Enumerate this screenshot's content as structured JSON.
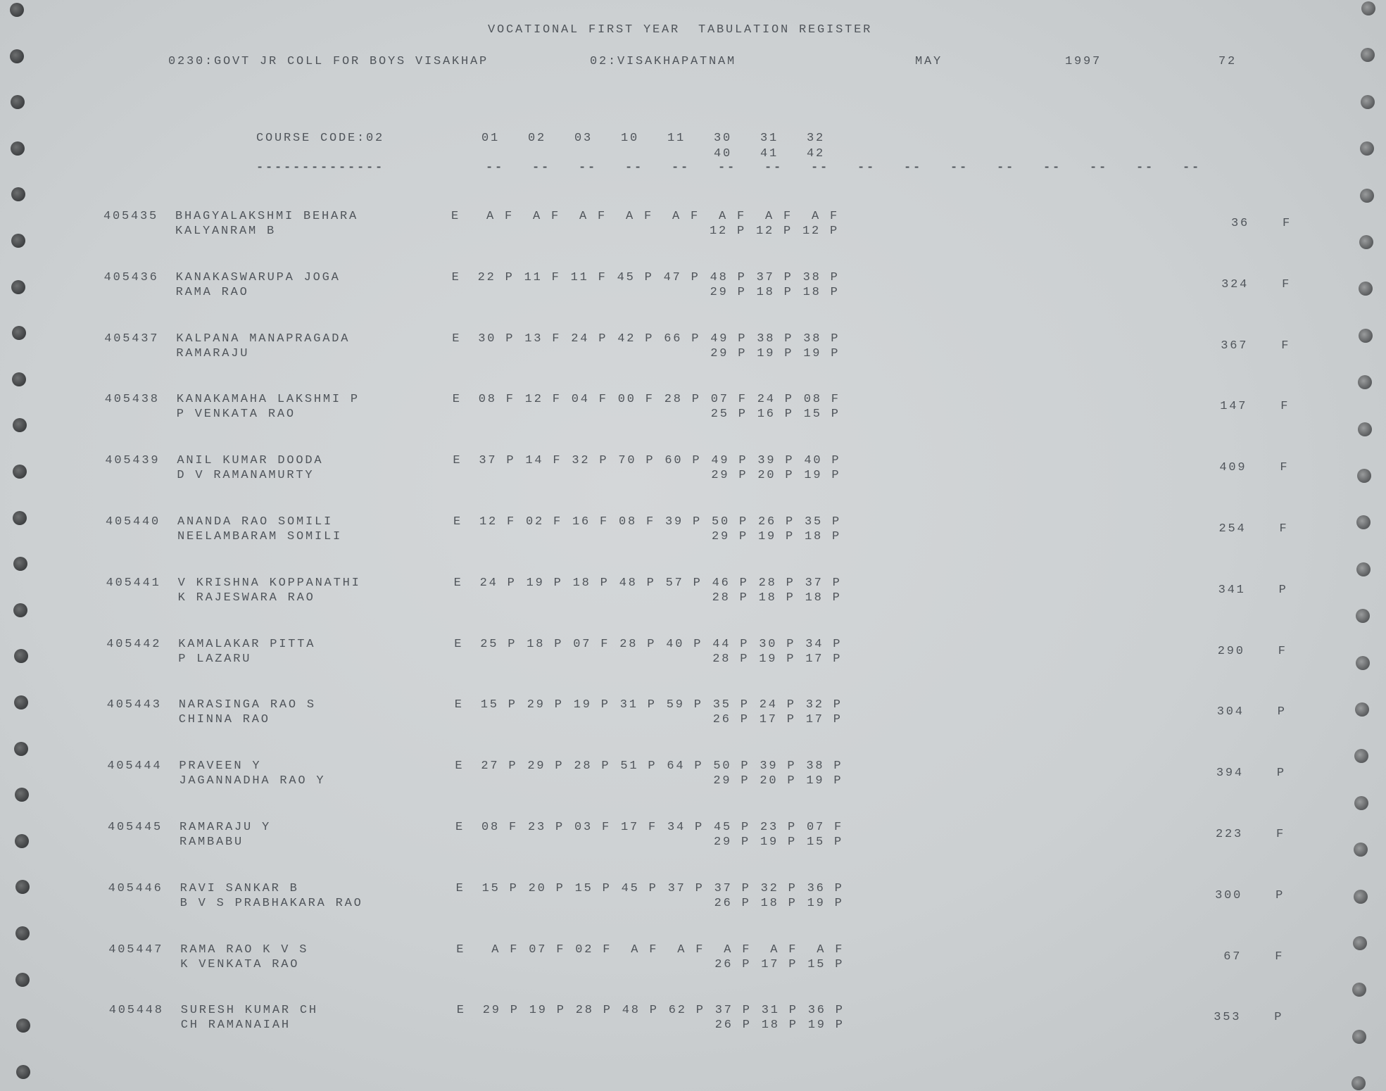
{
  "header": {
    "title": "VOCATIONAL FIRST YEAR  TABULATION REGISTER",
    "college": "0230:GOVT JR COLL FOR BOYS VISAKHAP",
    "district": "02:VISAKHAPATNAM",
    "month": "MAY",
    "year": "1997",
    "page": "72"
  },
  "columns": {
    "course_code": "COURSE CODE:02",
    "course_underline": "--------------",
    "subjects_top": [
      "01",
      "02",
      "03",
      "10",
      "11",
      "30",
      "31",
      "32"
    ],
    "subjects_bottom": [
      "40",
      "41",
      "42"
    ],
    "dash": "--"
  },
  "students": [
    {
      "id": "405435",
      "name": "BHAGYALAKSHMI BEHARA",
      "parent": "KALYANRAM B",
      "med": "E",
      "marks": [
        " A F",
        " A F",
        " A F",
        " A F",
        " A F",
        " A F",
        " A F",
        " A F"
      ],
      "practicals": [
        "12 P",
        "12 P",
        "12 P"
      ],
      "total": "36",
      "result": "F"
    },
    {
      "id": "405436",
      "name": "KANAKASWARUPA JOGA",
      "parent": "RAMA RAO",
      "med": "E",
      "marks": [
        "22 P",
        "11 F",
        "11 F",
        "45 P",
        "47 P",
        "48 P",
        "37 P",
        "38 P"
      ],
      "practicals": [
        "29 P",
        "18 P",
        "18 P"
      ],
      "total": "324",
      "result": "F"
    },
    {
      "id": "405437",
      "name": "KALPANA MANAPRAGADA",
      "parent": "RAMARAJU",
      "med": "E",
      "marks": [
        "30 P",
        "13 F",
        "24 P",
        "42 P",
        "66 P",
        "49 P",
        "38 P",
        "38 P"
      ],
      "practicals": [
        "29 P",
        "19 P",
        "19 P"
      ],
      "total": "367",
      "result": "F"
    },
    {
      "id": "405438",
      "name": "KANAKAMAHA LAKSHMI P",
      "parent": "P VENKATA RAO",
      "med": "E",
      "marks": [
        "08 F",
        "12 F",
        "04 F",
        "00 F",
        "28 P",
        "07 F",
        "24 P",
        "08 F"
      ],
      "practicals": [
        "25 P",
        "16 P",
        "15 P"
      ],
      "total": "147",
      "result": "F"
    },
    {
      "id": "405439",
      "name": "ANIL KUMAR DOODA",
      "parent": "D V RAMANAMURTY",
      "med": "E",
      "marks": [
        "37 P",
        "14 F",
        "32 P",
        "70 P",
        "60 P",
        "49 P",
        "39 P",
        "40 P"
      ],
      "practicals": [
        "29 P",
        "20 P",
        "19 P"
      ],
      "total": "409",
      "result": "F"
    },
    {
      "id": "405440",
      "name": "ANANDA RAO SOMILI",
      "parent": "NEELAMBARAM SOMILI",
      "med": "E",
      "marks": [
        "12 F",
        "02 F",
        "16 F",
        "08 F",
        "39 P",
        "50 P",
        "26 P",
        "35 P"
      ],
      "practicals": [
        "29 P",
        "19 P",
        "18 P"
      ],
      "total": "254",
      "result": "F"
    },
    {
      "id": "405441",
      "name": "V KRISHNA KOPPANATHI",
      "parent": "K RAJESWARA RAO",
      "med": "E",
      "marks": [
        "24 P",
        "19 P",
        "18 P",
        "48 P",
        "57 P",
        "46 P",
        "28 P",
        "37 P"
      ],
      "practicals": [
        "28 P",
        "18 P",
        "18 P"
      ],
      "total": "341",
      "result": "P"
    },
    {
      "id": "405442",
      "name": "KAMALAKAR PITTA",
      "parent": "P LAZARU",
      "med": "E",
      "marks": [
        "25 P",
        "18 P",
        "07 F",
        "28 P",
        "40 P",
        "44 P",
        "30 P",
        "34 P"
      ],
      "practicals": [
        "28 P",
        "19 P",
        "17 P"
      ],
      "total": "290",
      "result": "F"
    },
    {
      "id": "405443",
      "name": "NARASINGA RAO S",
      "parent": "CHINNA RAO",
      "med": "E",
      "marks": [
        "15 P",
        "29 P",
        "19 P",
        "31 P",
        "59 P",
        "35 P",
        "24 P",
        "32 P"
      ],
      "practicals": [
        "26 P",
        "17 P",
        "17 P"
      ],
      "total": "304",
      "result": "P"
    },
    {
      "id": "405444",
      "name": "PRAVEEN Y",
      "parent": "JAGANNADHA RAO Y",
      "med": "E",
      "marks": [
        "27 P",
        "29 P",
        "28 P",
        "51 P",
        "64 P",
        "50 P",
        "39 P",
        "38 P"
      ],
      "practicals": [
        "29 P",
        "20 P",
        "19 P"
      ],
      "total": "394",
      "result": "P"
    },
    {
      "id": "405445",
      "name": "RAMARAJU Y",
      "parent": "RAMBABU",
      "med": "E",
      "marks": [
        "08 F",
        "23 P",
        "03 F",
        "17 F",
        "34 P",
        "45 P",
        "23 P",
        "07 F"
      ],
      "practicals": [
        "29 P",
        "19 P",
        "15 P"
      ],
      "total": "223",
      "result": "F"
    },
    {
      "id": "405446",
      "name": "RAVI SANKAR B",
      "parent": "B V S PRABHAKARA RAO",
      "med": "E",
      "marks": [
        "15 P",
        "20 P",
        "15 P",
        "45 P",
        "37 P",
        "37 P",
        "32 P",
        "36 P"
      ],
      "practicals": [
        "26 P",
        "18 P",
        "19 P"
      ],
      "total": "300",
      "result": "P"
    },
    {
      "id": "405447",
      "name": "RAMA RAO K V S",
      "parent": "K VENKATA RAO",
      "med": "E",
      "marks": [
        " A F",
        "07 F",
        "02 F",
        " A F",
        " A F",
        " A F",
        " A F",
        " A F"
      ],
      "practicals": [
        "26 P",
        "17 P",
        "15 P"
      ],
      "total": "67",
      "result": "F"
    },
    {
      "id": "405448",
      "name": "SURESH KUMAR CH",
      "parent": "CH RAMANAIAH",
      "med": "E",
      "marks": [
        "29 P",
        "19 P",
        "28 P",
        "48 P",
        "62 P",
        "37 P",
        "31 P",
        "36 P"
      ],
      "practicals": [
        "26 P",
        "18 P",
        "19 P"
      ],
      "total": "353",
      "result": "P"
    }
  ]
}
